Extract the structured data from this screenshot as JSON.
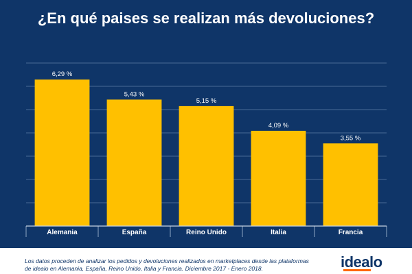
{
  "chart_data": {
    "type": "bar",
    "title": "¿En qué paises se realizan más devoluciones?",
    "categories": [
      "Alemania",
      "España",
      "Reino Unido",
      "Italia",
      "Francia"
    ],
    "values": [
      6.29,
      5.43,
      5.15,
      4.09,
      3.55
    ],
    "value_labels": [
      "6,29 %",
      "5,43 %",
      "5,15 %",
      "4,09 %",
      "3,55 %"
    ],
    "ylim": [
      0,
      7
    ],
    "grid": true,
    "xlabel": "",
    "ylabel": ""
  },
  "footnote": "Los datos proceden de analizar los pedidos y devoluciones realizados en marketplaces desde las plataformas de idealo en Alemania, España, Reino Unido, Italia y Francia. Diciembre 2017 - Enero 2018.",
  "logo_text": "idealo",
  "colors": {
    "background": "#0f3568",
    "bar": "#ffc000",
    "grid": "#4a6a96",
    "text": "#ffffff",
    "accent": "#ff6600"
  }
}
